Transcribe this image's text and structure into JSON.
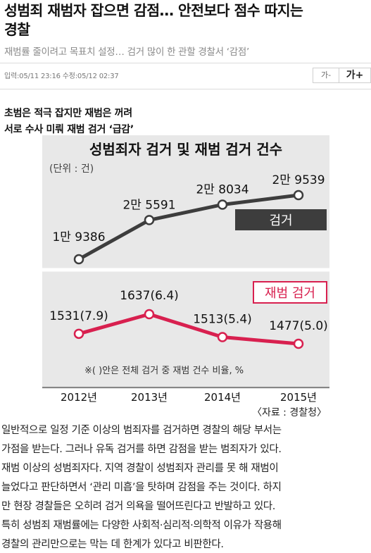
{
  "article": {
    "title_line1": "성범죄 재범자 잡으면 감점… 안전보다 점수 따지는",
    "title_line2": "경찰",
    "subtitle": "재범률 줄이려고 목표치 설정… 검거 많이 한 관할 경찰서 ‘감점’",
    "dateline": "입력:05/11 23:16 수정:05/12 02:37",
    "font_decrease_label": "가-",
    "font_increase_label": "가+",
    "lead_line1": "초범은 적극 잡지만 재범은 꺼려",
    "lead_line2": "서로 수사 미뤄 재범 검거 ‘급감’",
    "body_lines": [
      "일반적으로 일정 기준 이상의 범죄자를 검거하면 경찰의 해당 부서는",
      "가점을 받는다. 그러나 유독 검거를 하면 감점을 받는 범죄자가 있다.",
      "재범 이상의 성범죄자다. 지역 경찰이 성범죄자 관리를 못 해 재범이",
      "늘었다고 판단하면서 ‘관리 미흡’을 탓하며 감점을 주는 것이다. 하지",
      "만 현장 경찰들은 오히려 검거 의욕을 떨어뜨린다고 반발하고 있다.",
      "특히 성범죄 재범률에는 다양한 사회적·심리적·의학적 이유가 작용해",
      "경찰의 관리만으로는 막는 데 한계가 있다고 비판한다."
    ]
  },
  "chart_data": {
    "type": "line",
    "title": "성범죄자 검거 및 재범 검거 건수",
    "unit_label": "(단위 : 건)",
    "categories": [
      "2012년",
      "2013년",
      "2014년",
      "2015년"
    ],
    "series": [
      {
        "name": "검거",
        "values": [
          19386,
          25591,
          28034,
          29539
        ],
        "labels": [
          "1만 9386",
          "2만 5591",
          "2만 8034",
          "2만 9539"
        ],
        "color": "#3d3d3d"
      },
      {
        "name": "재범 검거",
        "values": [
          1531,
          1637,
          1513,
          1477
        ],
        "rates": [
          7.9,
          6.4,
          5.4,
          5.0
        ],
        "labels": [
          "1531(7.9)",
          "1637(6.4)",
          "1513(5.4)",
          "1477(5.0)"
        ],
        "color": "#d8204f"
      }
    ],
    "note": "※(    )안은 전체 검거 중 재범 건수 비율, %",
    "source": "〈자료 : 경찰청〉",
    "bg_color": "#e8e8e8",
    "grid": false
  }
}
